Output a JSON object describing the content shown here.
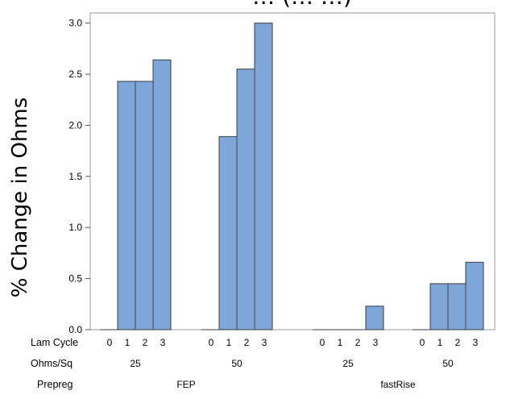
{
  "chart_data": {
    "type": "bar",
    "title": "… (… …)",
    "xlabel": "",
    "ylabel": "% Change in Ohms",
    "ylim": [
      0,
      3.1
    ],
    "yticks": [
      "0.0",
      "0.5",
      "1.0",
      "1.5",
      "2.0",
      "2.5",
      "3.0"
    ],
    "ytick_values": [
      0,
      0.5,
      1.0,
      1.5,
      2.0,
      2.5,
      3.0
    ],
    "grid": false,
    "bar_color": "#7ea6d8",
    "axis_rows": [
      {
        "label": "Lam Cycle"
      },
      {
        "label": "Ohms/Sq"
      },
      {
        "label": "Prepreg"
      }
    ],
    "groups": [
      {
        "prepreg": "FEP",
        "ohms_sq": "25",
        "lam_cycles": [
          "0",
          "1",
          "2",
          "3"
        ],
        "values": [
          0,
          2.43,
          2.43,
          2.64
        ]
      },
      {
        "prepreg": "FEP",
        "ohms_sq": "50",
        "lam_cycles": [
          "0",
          "1",
          "2",
          "3"
        ],
        "values": [
          0,
          1.89,
          2.55,
          3.0
        ]
      },
      {
        "prepreg": "fastRise",
        "ohms_sq": "25",
        "lam_cycles": [
          "0",
          "1",
          "2",
          "3"
        ],
        "values": [
          0,
          0,
          0,
          0.23
        ]
      },
      {
        "prepreg": "fastRise",
        "ohms_sq": "50",
        "lam_cycles": [
          "0",
          "1",
          "2",
          "3"
        ],
        "values": [
          0,
          0.45,
          0.45,
          0.66
        ]
      }
    ],
    "prepregs": [
      "FEP",
      "fastRise"
    ]
  }
}
